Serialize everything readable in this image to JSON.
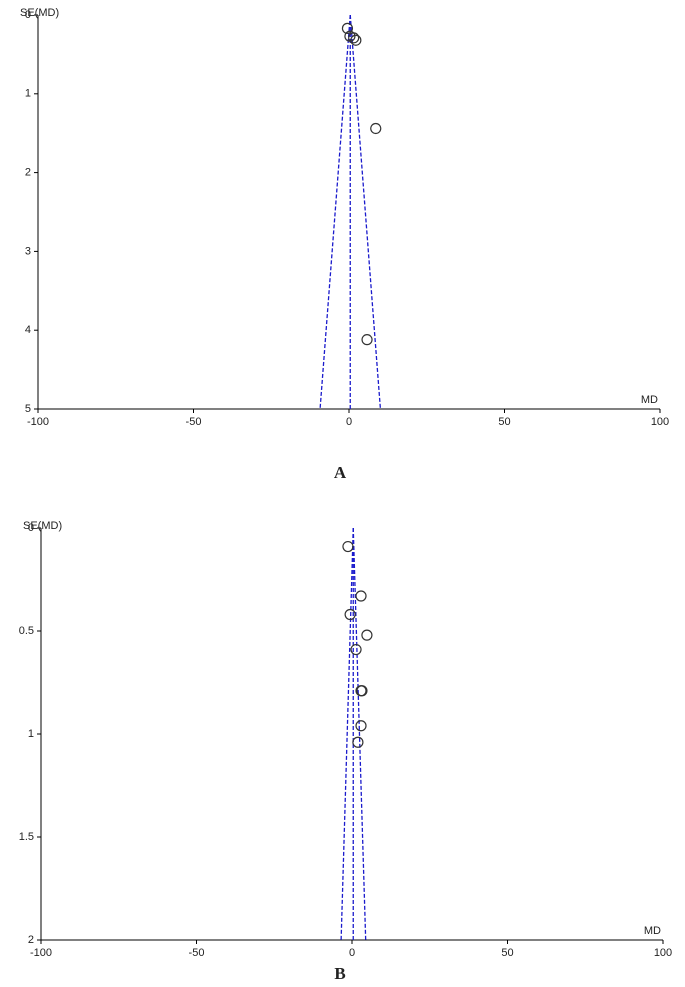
{
  "chart_data": [
    {
      "type": "scatter",
      "label": "A",
      "x_label": "MD",
      "y_label": "SE(MD)",
      "x": [
        -0.5,
        0.3,
        1.5,
        2.2,
        8.6,
        5.8
      ],
      "values": [
        0.17,
        0.27,
        0.29,
        0.32,
        1.44,
        4.12
      ],
      "funnel": {
        "center": 0.4,
        "lower": -9.3,
        "upper": 10.1
      },
      "xlim": [
        -100,
        100
      ],
      "xticks": [
        -100,
        -50,
        0,
        50,
        100
      ],
      "ylim": [
        0,
        5
      ],
      "yticks": [
        0,
        1,
        2,
        3,
        4,
        5
      ],
      "y_inverted": true,
      "color": "#333333",
      "funnel_color": "#1a1acc"
    },
    {
      "type": "scatter",
      "label": "B",
      "x_label": "MD",
      "y_label": "SE(MD)",
      "x": [
        -1.3,
        2.9,
        -0.6,
        4.8,
        1.3,
        2.9,
        3.2,
        2.9,
        1.9
      ],
      "values": [
        0.09,
        0.33,
        0.42,
        0.52,
        0.59,
        0.79,
        0.79,
        0.96,
        1.04
      ],
      "funnel": {
        "center": 0.4,
        "lower": -3.5,
        "upper": 4.4
      },
      "xlim": [
        -100,
        100
      ],
      "xticks": [
        -100,
        -50,
        0,
        50,
        100
      ],
      "ylim": [
        0,
        2
      ],
      "yticks": [
        0,
        0.5,
        1,
        1.5,
        2
      ],
      "y_inverted": true,
      "color": "#333333",
      "funnel_color": "#1a1acc"
    }
  ]
}
